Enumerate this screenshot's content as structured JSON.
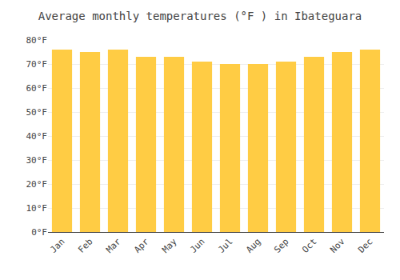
{
  "chart_data": {
    "type": "bar",
    "title": "Average monthly temperatures (°F ) in Ibateguara",
    "categories": [
      "Jan",
      "Feb",
      "Mar",
      "Apr",
      "May",
      "Jun",
      "Jul",
      "Aug",
      "Sep",
      "Oct",
      "Nov",
      "Dec"
    ],
    "values": [
      76,
      75,
      76,
      73,
      73,
      71,
      70,
      70,
      71,
      73,
      75,
      76
    ],
    "color": "#FFCC44",
    "ylim": [
      0,
      80
    ],
    "yticks": [
      {
        "value": 0,
        "label": "0°F"
      },
      {
        "value": 10,
        "label": "10°F"
      },
      {
        "value": 20,
        "label": "20°F"
      },
      {
        "value": 30,
        "label": "30°F"
      },
      {
        "value": 40,
        "label": "40°F"
      },
      {
        "value": 50,
        "label": "50°F"
      },
      {
        "value": 60,
        "label": "60°F"
      },
      {
        "value": 70,
        "label": "70°F"
      },
      {
        "value": 80,
        "label": "80°F"
      }
    ],
    "grid": true
  }
}
